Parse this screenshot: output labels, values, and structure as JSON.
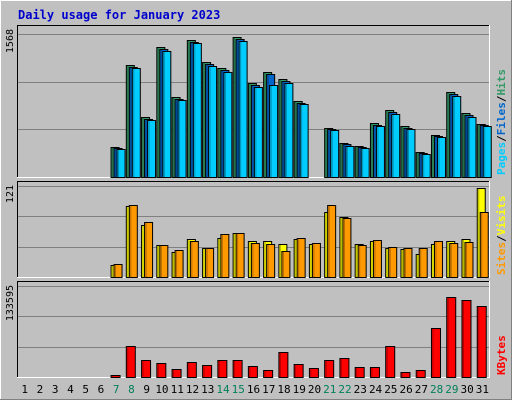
{
  "chart_data": {
    "type": "bar",
    "title": "Daily usage for January 2023",
    "categories": [
      "1",
      "2",
      "3",
      "4",
      "5",
      "6",
      "7",
      "8",
      "9",
      "10",
      "11",
      "12",
      "13",
      "14",
      "15",
      "16",
      "17",
      "18",
      "19",
      "20",
      "21",
      "22",
      "23",
      "24",
      "25",
      "26",
      "27",
      "28",
      "29",
      "30",
      "31"
    ],
    "weekend_days": [
      "7",
      "8",
      "14",
      "15",
      "21",
      "22",
      "28",
      "29"
    ],
    "panels": [
      {
        "name": "hits-files-pages",
        "y_tick_label": "1568",
        "ylim": [
          0,
          1568
        ],
        "legend": [
          "Pages",
          "/",
          "Files",
          "/",
          "Hits"
        ],
        "series": [
          {
            "name": "Hits",
            "color": "#339966",
            "values": [
              0,
              0,
              0,
              0,
              0,
              0,
              330,
              1230,
              660,
              1425,
              880,
              1505,
              1260,
              1190,
              1535,
              1030,
              1150,
              1070,
              830,
              0,
              540,
              370,
              340,
              590,
              730,
              560,
              270,
              460,
              930,
              700,
              580
            ]
          },
          {
            "name": "Files",
            "color": "#0066cc",
            "values": [
              0,
              0,
              0,
              0,
              0,
              0,
              320,
              1210,
              640,
              1405,
              860,
              1485,
              1240,
              1170,
              1515,
              1010,
              1130,
              1050,
              815,
              0,
              530,
              360,
              330,
              570,
              710,
              540,
              260,
              450,
              910,
              680,
              570
            ]
          },
          {
            "name": "Pages",
            "color": "#00ccff",
            "values": [
              0,
              0,
              0,
              0,
              0,
              0,
              310,
              1190,
              620,
              1380,
              845,
              1465,
              1220,
              1150,
              1495,
              990,
              1010,
              1030,
              800,
              0,
              515,
              345,
              320,
              555,
              695,
              530,
              250,
              440,
              890,
              660,
              560
            ]
          }
        ]
      },
      {
        "name": "visits-sites",
        "y_tick_label": "121",
        "ylim": [
          0,
          121
        ],
        "legend": [
          "Sites",
          "/",
          "Visits"
        ],
        "series": [
          {
            "name": "Visits",
            "color": "#ffff00",
            "values": [
              0,
              0,
              0,
              0,
              0,
              0,
              16,
              95,
              69,
              43,
              33,
              50,
              39,
              52,
              59,
              48,
              48,
              44,
              51,
              44,
              86,
              80,
              44,
              48,
              39,
              37,
              30,
              44,
              48,
              50,
              118
            ]
          },
          {
            "name": "Sites",
            "color": "#ff9900",
            "values": [
              0,
              0,
              0,
              0,
              0,
              0,
              17,
              96,
              73,
              43,
              36,
              48,
              39,
              57,
              59,
              45,
              44,
              34,
              52,
              45,
              96,
              79,
              43,
              49,
              40,
              39,
              39,
              48,
              45,
              47,
              86
            ]
          }
        ]
      },
      {
        "name": "kbytes",
        "y_tick_label": "133595",
        "ylim": [
          0,
          133595
        ],
        "legend": [
          "KBytes"
        ],
        "series": [
          {
            "name": "KBytes",
            "color": "#ff0000",
            "values": [
              0,
              0,
              0,
              0,
              0,
              0,
              3200,
              45000,
              25000,
              21000,
              12000,
              22000,
              17000,
              25000,
              25000,
              16000,
              11000,
              36000,
              19000,
              13000,
              25000,
              28000,
              14000,
              14000,
              45000,
              8000,
              11000,
              72000,
              118000,
              113000,
              104000
            ]
          }
        ]
      }
    ]
  }
}
